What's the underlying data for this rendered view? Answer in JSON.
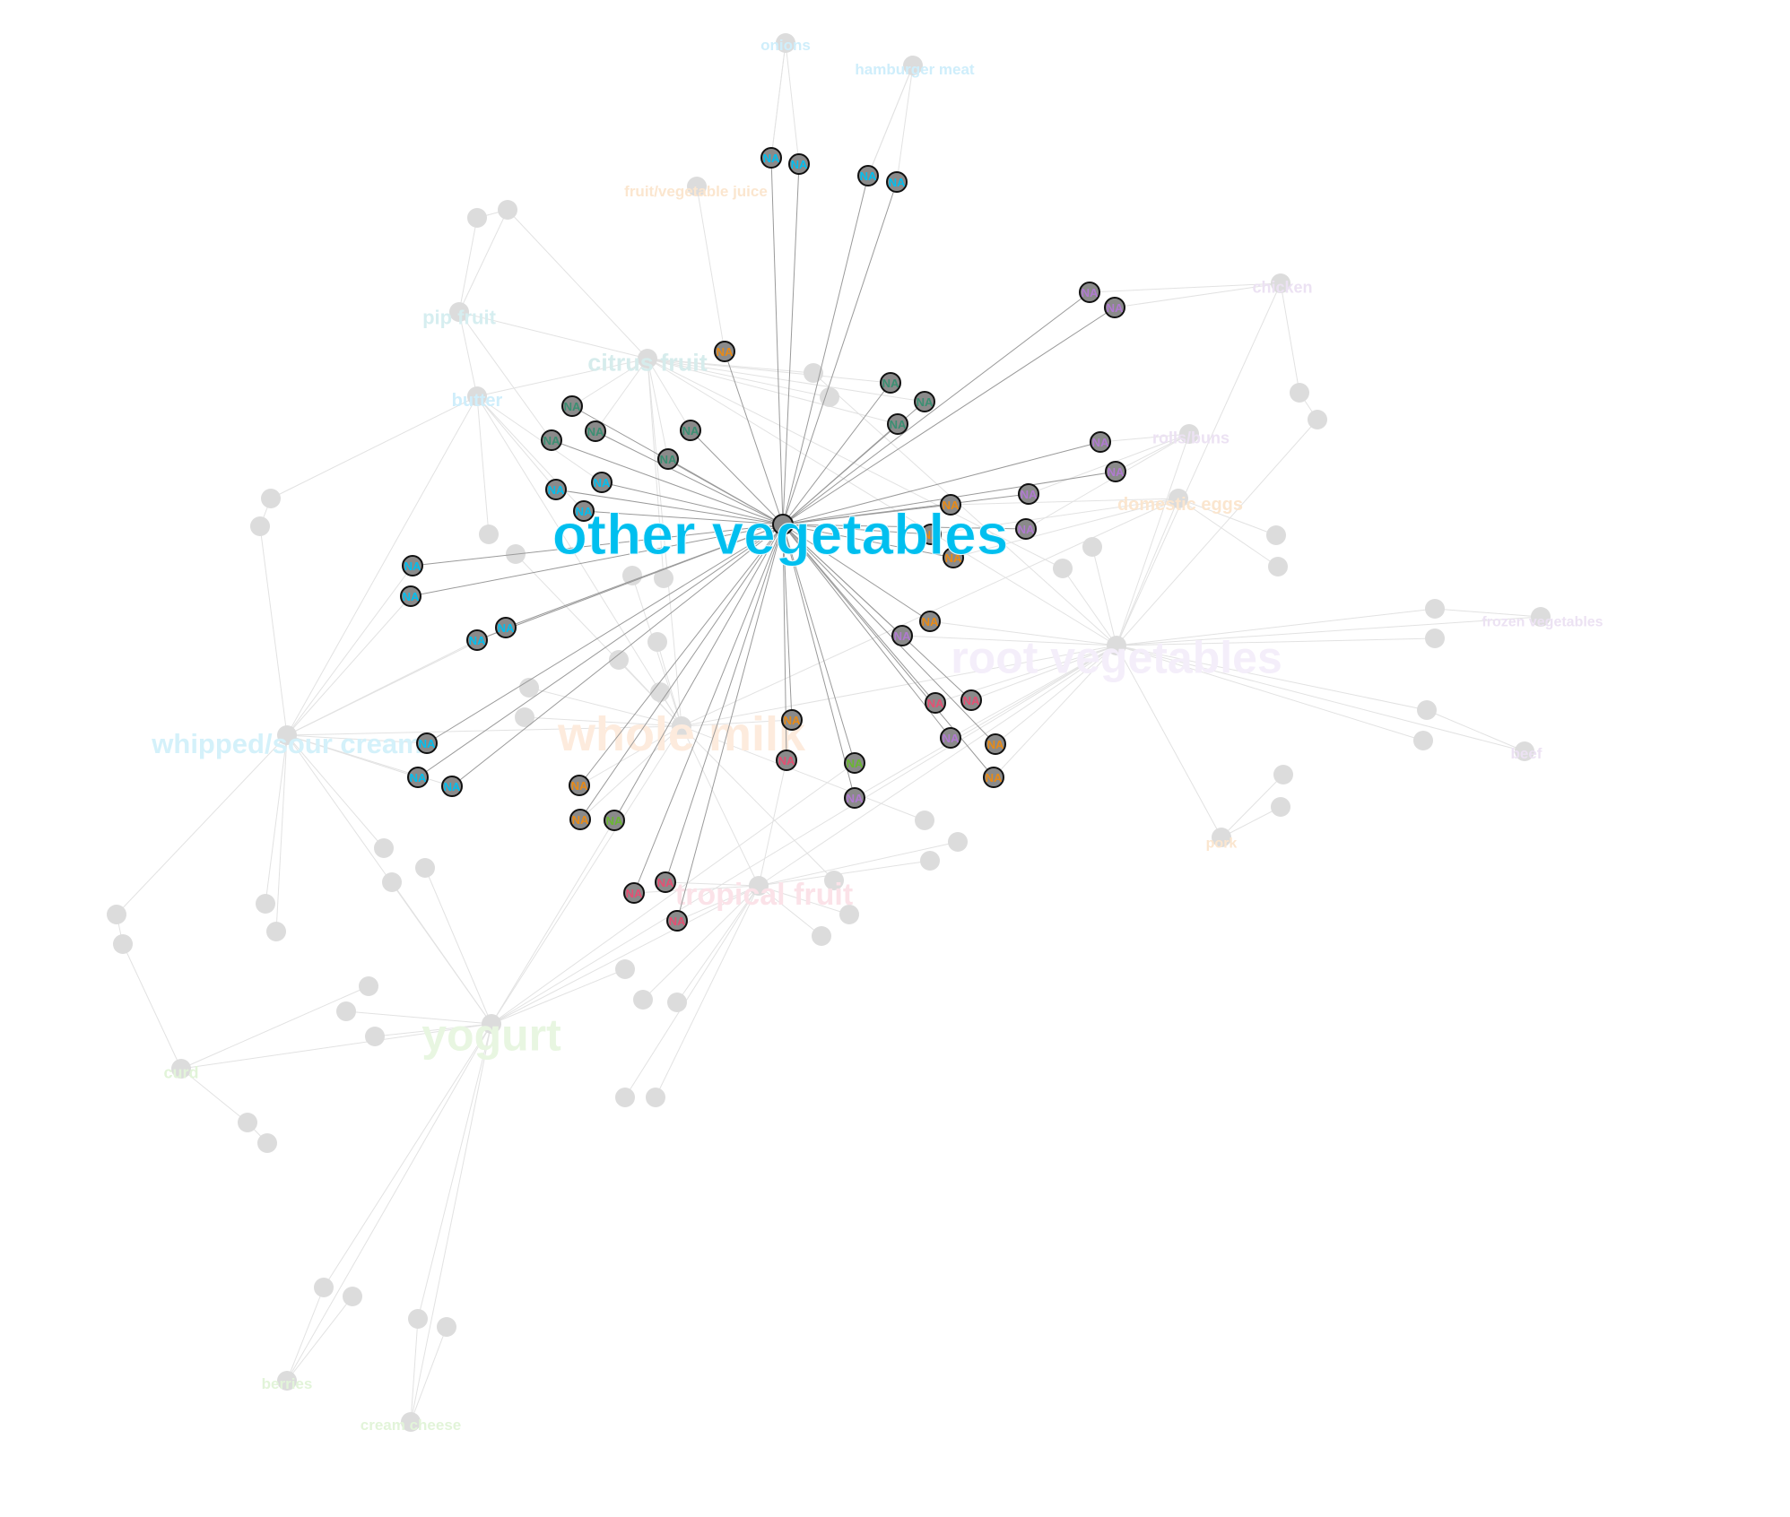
{
  "colors": {
    "focus": "#00bfef",
    "teal": "#3a8f72",
    "orange": "#e88a16",
    "purple": "#b07ad0",
    "pink": "#e54f73",
    "green": "#6ab731",
    "hub_node": "#8a8a8a",
    "faded_node": "#dcdcdc",
    "edge_focus": "#9a9a9a",
    "edge_faded": "#e2e2e2",
    "ring": "#111111"
  },
  "focus_node": {
    "label": "other vegetables"
  },
  "na_label": "NA",
  "hub_labels": [
    {
      "id": "onions",
      "label": "onions",
      "size": 17,
      "color": "#cfeefb"
    },
    {
      "id": "hamburger",
      "label": "hamburger meat",
      "size": 17,
      "color": "#cfeefb"
    },
    {
      "id": "fruitjuice",
      "label": "fruit/vegetable juice",
      "size": 17,
      "color": "#fbe6cf"
    },
    {
      "id": "chicken",
      "label": "chicken",
      "size": 18,
      "color": "#ece2f3"
    },
    {
      "id": "pipfruit",
      "label": "pip fruit",
      "size": 22,
      "color": "#d6eef0"
    },
    {
      "id": "citrus",
      "label": "citrus fruit",
      "size": 27,
      "color": "#d6ecec"
    },
    {
      "id": "butter",
      "label": "butter",
      "size": 20,
      "color": "#cfeefb"
    },
    {
      "id": "rollsbuns",
      "label": "rolls/buns",
      "size": 18,
      "color": "#ece2f3"
    },
    {
      "id": "eggs",
      "label": "domestic eggs",
      "size": 20,
      "color": "#fbe6cf"
    },
    {
      "id": "rootveg",
      "label": "root vegetables",
      "size": 50,
      "color": "#f4eefa"
    },
    {
      "id": "frozenveg",
      "label": "frozen vegetables",
      "size": 16,
      "color": "#ece2f3"
    },
    {
      "id": "whipped",
      "label": "whipped/sour cream",
      "size": 31,
      "color": "#d4f1fa"
    },
    {
      "id": "wholemilk",
      "label": "whole milk",
      "size": 54,
      "color": "#fdebdd"
    },
    {
      "id": "beef",
      "label": "beef",
      "size": 17,
      "color": "#ece2f3"
    },
    {
      "id": "pork",
      "label": "pork",
      "size": 16,
      "color": "#fbe6cf"
    },
    {
      "id": "tropical",
      "label": "tropical fruit",
      "size": 34,
      "color": "#fbe2e8"
    },
    {
      "id": "curd",
      "label": "curd",
      "size": 18,
      "color": "#e2f4d9"
    },
    {
      "id": "yogurt",
      "label": "yogurt",
      "size": 50,
      "color": "#e8f6e1"
    },
    {
      "id": "berries",
      "label": "berries",
      "size": 17,
      "color": "#e2f4d9"
    },
    {
      "id": "creamcheese",
      "label": "cream cheese",
      "size": 17,
      "color": "#e2f4d9"
    }
  ]
}
